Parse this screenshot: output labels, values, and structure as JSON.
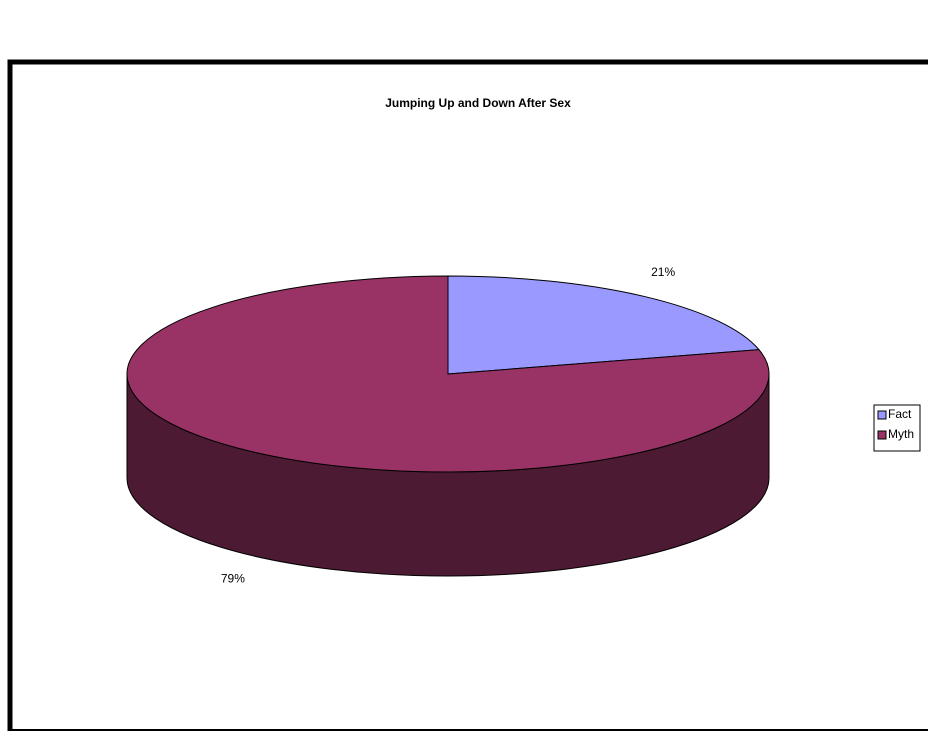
{
  "chart_data": {
    "type": "pie3d",
    "title": "Jumping Up and Down After Sex",
    "categories": [
      "Fact",
      "Myth"
    ],
    "values": [
      21,
      79
    ],
    "value_labels": [
      "21%",
      "79%"
    ],
    "colors": [
      "#9999ff",
      "#993366"
    ],
    "side_colors": [
      "#4d4d80",
      "#4d1a33"
    ],
    "legend": "right"
  }
}
